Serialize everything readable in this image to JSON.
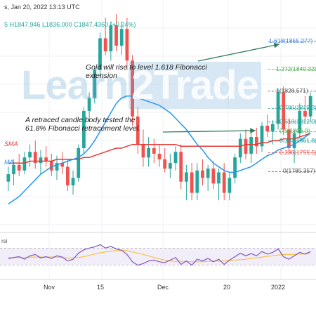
{
  "header": {
    "title_fragment": "s, Jan 20, 2022 13:13 UTC",
    "ohlc_fragment": "5  H1847.946  L1836.000  C1847.4360  (+0.24%)",
    "h_value": "H1847.946",
    "l_value": "L1836.000",
    "c_value": "C1847.4360",
    "change": "(+0.24%)"
  },
  "watermark": {
    "left": "Learn",
    "right": "2Trade"
  },
  "annotations": {
    "gold": "Gold will rise to level 1.618 Fibonacci extension",
    "gold_line1": "Gold will rise to level 1.618 Fibonacci",
    "gold_line2": "extension",
    "retrace_line1": "A retraced candle body tested the",
    "retrace_line2": "61.8% Fibonacci retracement level."
  },
  "sma_labels": {
    "sma_red": "SMA",
    "sma_blue": "MA"
  },
  "rsi_label": "rsi",
  "fib_labels": [
    {
      "text": "1.618(1855.277)",
      "color": "#3f7fd8"
    },
    {
      "text": "1.272(1840.325)",
      "color": "#4caf50"
    },
    {
      "text": "1(1828.571)",
      "color": "#555555"
    },
    {
      "text": "0.786(1819.3)",
      "color": "#26a69a"
    },
    {
      "text": "0.618(1812.0)",
      "color": "#26a69a"
    },
    {
      "text": "0.5(1806.9)",
      "color": "#4caf50"
    },
    {
      "text": "0.382(1801.8)",
      "color": "#26a69a"
    },
    {
      "text": "0.236(1795.5)",
      "color": "#ef5350"
    },
    {
      "text": "0(1785.357)",
      "color": "#555555"
    }
  ],
  "colors": {
    "bull": "#26a69a",
    "bear": "#ef5350",
    "sma_red": "#e53935",
    "sma_blue": "#2196f3",
    "rsi": "#7e57c2",
    "rsi_ma": "#f5c242",
    "arrow": "#2e7d5b"
  },
  "chart_data": {
    "type": "candlestick",
    "x_tick_labels": [
      "Nov",
      "15",
      "Dec",
      "20",
      "2022"
    ],
    "ylim": [
      1755,
      1870
    ],
    "candles": [
      [
        1780,
        1788,
        1775,
        1784
      ],
      [
        1784,
        1792,
        1778,
        1789
      ],
      [
        1789,
        1795,
        1783,
        1786
      ],
      [
        1786,
        1796,
        1784,
        1793
      ],
      [
        1793,
        1800,
        1788,
        1796
      ],
      [
        1796,
        1802,
        1787,
        1790
      ],
      [
        1790,
        1797,
        1784,
        1793
      ],
      [
        1793,
        1799,
        1788,
        1791
      ],
      [
        1791,
        1795,
        1783,
        1786
      ],
      [
        1786,
        1794,
        1781,
        1790
      ],
      [
        1790,
        1796,
        1784,
        1788
      ],
      [
        1788,
        1792,
        1775,
        1778
      ],
      [
        1778,
        1786,
        1773,
        1782
      ],
      [
        1782,
        1800,
        1780,
        1798
      ],
      [
        1798,
        1820,
        1795,
        1818
      ],
      [
        1818,
        1828,
        1812,
        1825
      ],
      [
        1825,
        1842,
        1822,
        1840
      ],
      [
        1840,
        1860,
        1836,
        1857
      ],
      [
        1857,
        1868,
        1848,
        1850
      ],
      [
        1850,
        1866,
        1845,
        1864
      ],
      [
        1864,
        1870,
        1850,
        1853
      ],
      [
        1853,
        1866,
        1848,
        1862
      ],
      [
        1862,
        1868,
        1840,
        1845
      ],
      [
        1845,
        1848,
        1810,
        1815
      ],
      [
        1815,
        1820,
        1795,
        1800
      ],
      [
        1800,
        1808,
        1788,
        1793
      ],
      [
        1793,
        1804,
        1788,
        1798
      ],
      [
        1798,
        1803,
        1790,
        1795
      ],
      [
        1795,
        1800,
        1788,
        1792
      ],
      [
        1792,
        1798,
        1785,
        1787
      ],
      [
        1787,
        1795,
        1782,
        1790
      ],
      [
        1790,
        1799,
        1786,
        1796
      ],
      [
        1796,
        1800,
        1776,
        1780
      ],
      [
        1780,
        1789,
        1770,
        1785
      ],
      [
        1785,
        1790,
        1770,
        1774
      ],
      [
        1774,
        1790,
        1770,
        1786
      ],
      [
        1786,
        1792,
        1778,
        1782
      ],
      [
        1782,
        1789,
        1775,
        1787
      ],
      [
        1787,
        1791,
        1776,
        1779
      ],
      [
        1779,
        1787,
        1770,
        1785
      ],
      [
        1785,
        1790,
        1770,
        1774
      ],
      [
        1774,
        1785,
        1770,
        1782
      ],
      [
        1782,
        1795,
        1779,
        1793
      ],
      [
        1793,
        1806,
        1790,
        1803
      ],
      [
        1803,
        1808,
        1792,
        1795
      ],
      [
        1795,
        1806,
        1790,
        1804
      ],
      [
        1804,
        1809,
        1795,
        1799
      ],
      [
        1799,
        1812,
        1796,
        1810
      ],
      [
        1810,
        1816,
        1804,
        1807
      ],
      [
        1807,
        1813,
        1800,
        1811
      ],
      [
        1811,
        1830,
        1808,
        1828
      ],
      [
        1828,
        1831,
        1805,
        1808
      ],
      [
        1808,
        1814,
        1795,
        1798
      ],
      [
        1798,
        1808,
        1790,
        1806
      ],
      [
        1806,
        1822,
        1803,
        1818
      ],
      [
        1818,
        1826,
        1812,
        1815
      ],
      [
        1815,
        1828,
        1812,
        1826
      ]
    ],
    "sma_red": [
      1790,
      1790,
      1790,
      1790,
      1791,
      1791,
      1791,
      1791,
      1791,
      1792,
      1792,
      1792,
      1792,
      1792,
      1793,
      1793,
      1794,
      1795,
      1796,
      1797,
      1798,
      1798,
      1799,
      1800,
      1800,
      1800,
      1800,
      1800,
      1800,
      1800,
      1800,
      1800,
      1799,
      1799,
      1799,
      1799,
      1799,
      1799,
      1799,
      1799,
      1799,
      1799,
      1799,
      1799,
      1800,
      1800,
      1800,
      1801,
      1801,
      1802,
      1802,
      1803,
      1803,
      1803,
      1804,
      1805,
      1806
    ],
    "sma_blue": [
      1768,
      1770,
      1772,
      1775,
      1778,
      1781,
      1784,
      1786,
      1788,
      1789,
      1790,
      1791,
      1792,
      1793,
      1795,
      1798,
      1802,
      1807,
      1812,
      1817,
      1822,
      1825,
      1826,
      1826,
      1825,
      1824,
      1823,
      1822,
      1821,
      1819,
      1817,
      1814,
      1811,
      1808,
      1804,
      1800,
      1797,
      1793,
      1790,
      1788,
      1786,
      1785,
      1785,
      1786,
      1787,
      1788,
      1790,
      1792,
      1794,
      1795,
      1797,
      1798,
      1799,
      1800,
      1802,
      1804,
      1806
    ],
    "rsi": [
      45,
      48,
      50,
      44,
      52,
      55,
      47,
      50,
      46,
      52,
      49,
      40,
      44,
      58,
      66,
      70,
      73,
      78,
      70,
      74,
      68,
      65,
      55,
      38,
      30,
      34,
      40,
      42,
      38,
      36,
      42,
      48,
      32,
      40,
      30,
      44,
      40,
      46,
      38,
      44,
      32,
      42,
      50,
      58,
      52,
      57,
      52,
      62,
      56,
      60,
      68,
      50,
      44,
      52,
      60,
      56,
      62
    ],
    "rsi_ma": [
      48,
      48,
      48,
      48,
      49,
      49,
      49,
      49,
      49,
      49,
      48,
      47,
      47,
      48,
      50,
      53,
      56,
      59,
      61,
      63,
      64,
      65,
      64,
      61,
      58,
      55,
      52,
      48,
      45,
      42,
      40,
      39,
      39,
      39,
      38,
      38,
      38,
      39,
      39,
      40,
      40,
      41,
      42,
      43,
      44,
      46,
      47,
      49,
      51,
      52,
      54,
      55,
      55,
      55,
      56,
      56,
      57
    ],
    "fib_levels": [
      {
        "ratio": 1.618,
        "price": 1855.277
      },
      {
        "ratio": 1.272,
        "price": 1840.325
      },
      {
        "ratio": 1,
        "price": 1828.571
      },
      {
        "ratio": 0.786,
        "price": 1819.3
      },
      {
        "ratio": 0.618,
        "price": 1812.0
      },
      {
        "ratio": 0.5,
        "price": 1806.9
      },
      {
        "ratio": 0.382,
        "price": 1801.8
      },
      {
        "ratio": 0.236,
        "price": 1795.5
      },
      {
        "ratio": 0,
        "price": 1785.357
      }
    ]
  }
}
